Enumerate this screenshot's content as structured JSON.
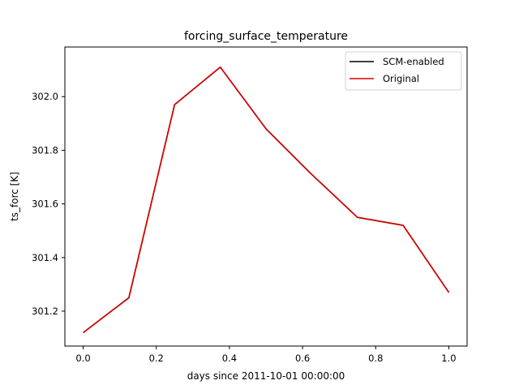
{
  "chart_data": {
    "type": "line",
    "title": "forcing_surface_temperature",
    "xlabel": "days since 2011-10-01 00:00:00",
    "ylabel": "ts_forc [K]",
    "xlim": [
      -0.05,
      1.05
    ],
    "ylim": [
      301.07,
      302.185
    ],
    "xticks": [
      0.0,
      0.2,
      0.4,
      0.6,
      0.8,
      1.0
    ],
    "xtick_labels": [
      "0.0",
      "0.2",
      "0.4",
      "0.6",
      "0.8",
      "1.0"
    ],
    "yticks": [
      301.2,
      301.4,
      301.6,
      301.8,
      302.0
    ],
    "ytick_labels": [
      "301.2",
      "301.4",
      "301.6",
      "301.8",
      "302.0"
    ],
    "grid": false,
    "legend_position": "top-right",
    "x": [
      0.0,
      0.125,
      0.25,
      0.375,
      0.5,
      0.625,
      0.75,
      0.875,
      1.0
    ],
    "series": [
      {
        "name": "SCM-enabled",
        "color": "#000000",
        "values": [
          301.12,
          301.25,
          301.97,
          302.11,
          301.88,
          301.71,
          301.55,
          301.52,
          301.27
        ]
      },
      {
        "name": "Original",
        "color": "#dd0000",
        "values": [
          301.12,
          301.25,
          301.97,
          302.11,
          301.88,
          301.71,
          301.55,
          301.52,
          301.27
        ]
      }
    ]
  }
}
